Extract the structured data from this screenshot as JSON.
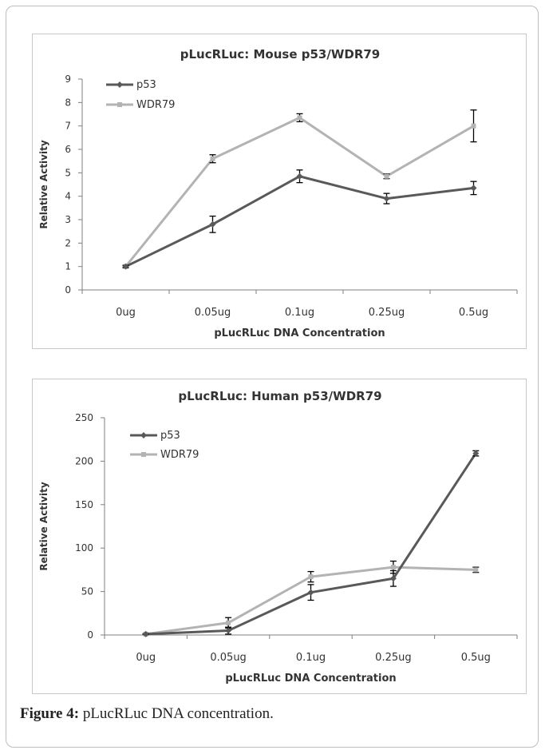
{
  "caption": {
    "label": "Figure 4:",
    "text": " pLucRLuc DNA concentration."
  },
  "colors": {
    "p53": "#595959",
    "WDR79": "#b3b3b3",
    "axis": "#7f7f7f",
    "text": "#333333"
  },
  "chart_data": [
    {
      "type": "line",
      "title": "pLucRLuc:  Mouse p53/WDR79",
      "xlabel": "pLucRLuc DNA Concentration",
      "ylabel": "Relative Activity",
      "categories": [
        "0ug",
        "0.05ug",
        "0.1ug",
        "0.25ug",
        "0.5ug"
      ],
      "ylim": [
        0,
        9
      ],
      "yticks": [
        0,
        1,
        2,
        3,
        4,
        5,
        6,
        7,
        8,
        9
      ],
      "yticklabels": [
        "0",
        "1",
        "2",
        "3",
        "4",
        "5",
        "6",
        "7",
        "8",
        "9"
      ],
      "legend": "top-left",
      "series": [
        {
          "name": "p53",
          "values": [
            1.0,
            2.8,
            4.85,
            3.9,
            4.35
          ],
          "errors": [
            0.05,
            0.35,
            0.27,
            0.22,
            0.28
          ]
        },
        {
          "name": "WDR79",
          "values": [
            1.0,
            5.6,
            7.35,
            4.85,
            7.0
          ],
          "errors": [
            0.05,
            0.17,
            0.17,
            0.1,
            0.68
          ]
        }
      ]
    },
    {
      "type": "line",
      "title": "pLucRLuc:  Human p53/WDR79",
      "xlabel": "pLucRLuc DNA Concentration",
      "ylabel": "Relative Activity",
      "categories": [
        "0ug",
        "0.05ug",
        "0.1ug",
        "0.25ug",
        "0.5ug"
      ],
      "ylim": [
        0,
        250
      ],
      "yticks": [
        0,
        50,
        100,
        150,
        200,
        250
      ],
      "yticklabels": [
        "0",
        "50",
        "100",
        "150",
        "200",
        "250"
      ],
      "legend": "top-left",
      "series": [
        {
          "name": "p53",
          "values": [
            1,
            5,
            49,
            65,
            209
          ],
          "errors": [
            0.5,
            4,
            9,
            9,
            3
          ]
        },
        {
          "name": "WDR79",
          "values": [
            1,
            14,
            67,
            78,
            75
          ],
          "errors": [
            0.5,
            6,
            6,
            7,
            3
          ]
        }
      ]
    }
  ]
}
